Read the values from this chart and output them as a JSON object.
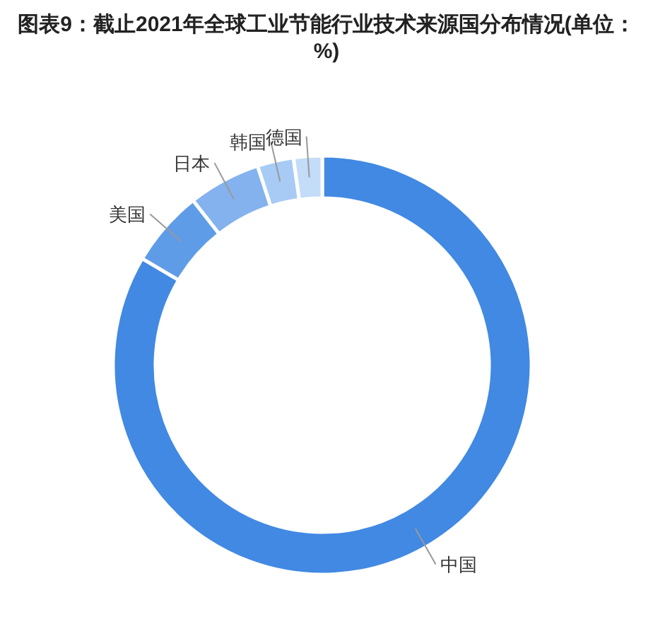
{
  "chart_data": {
    "type": "donut",
    "title": "图表9：截止2021年全球工业节能行业技术来源国分布情况(单位：%)",
    "categories": [
      "中国",
      "美国",
      "日本",
      "韩国",
      "德国"
    ],
    "values": [
      83.5,
      5.9,
      5.6,
      2.8,
      2.2
    ],
    "colors": [
      "#4189e3",
      "#5f9ce8",
      "#84b2ef",
      "#a8cbf5",
      "#c3dcf8"
    ]
  }
}
